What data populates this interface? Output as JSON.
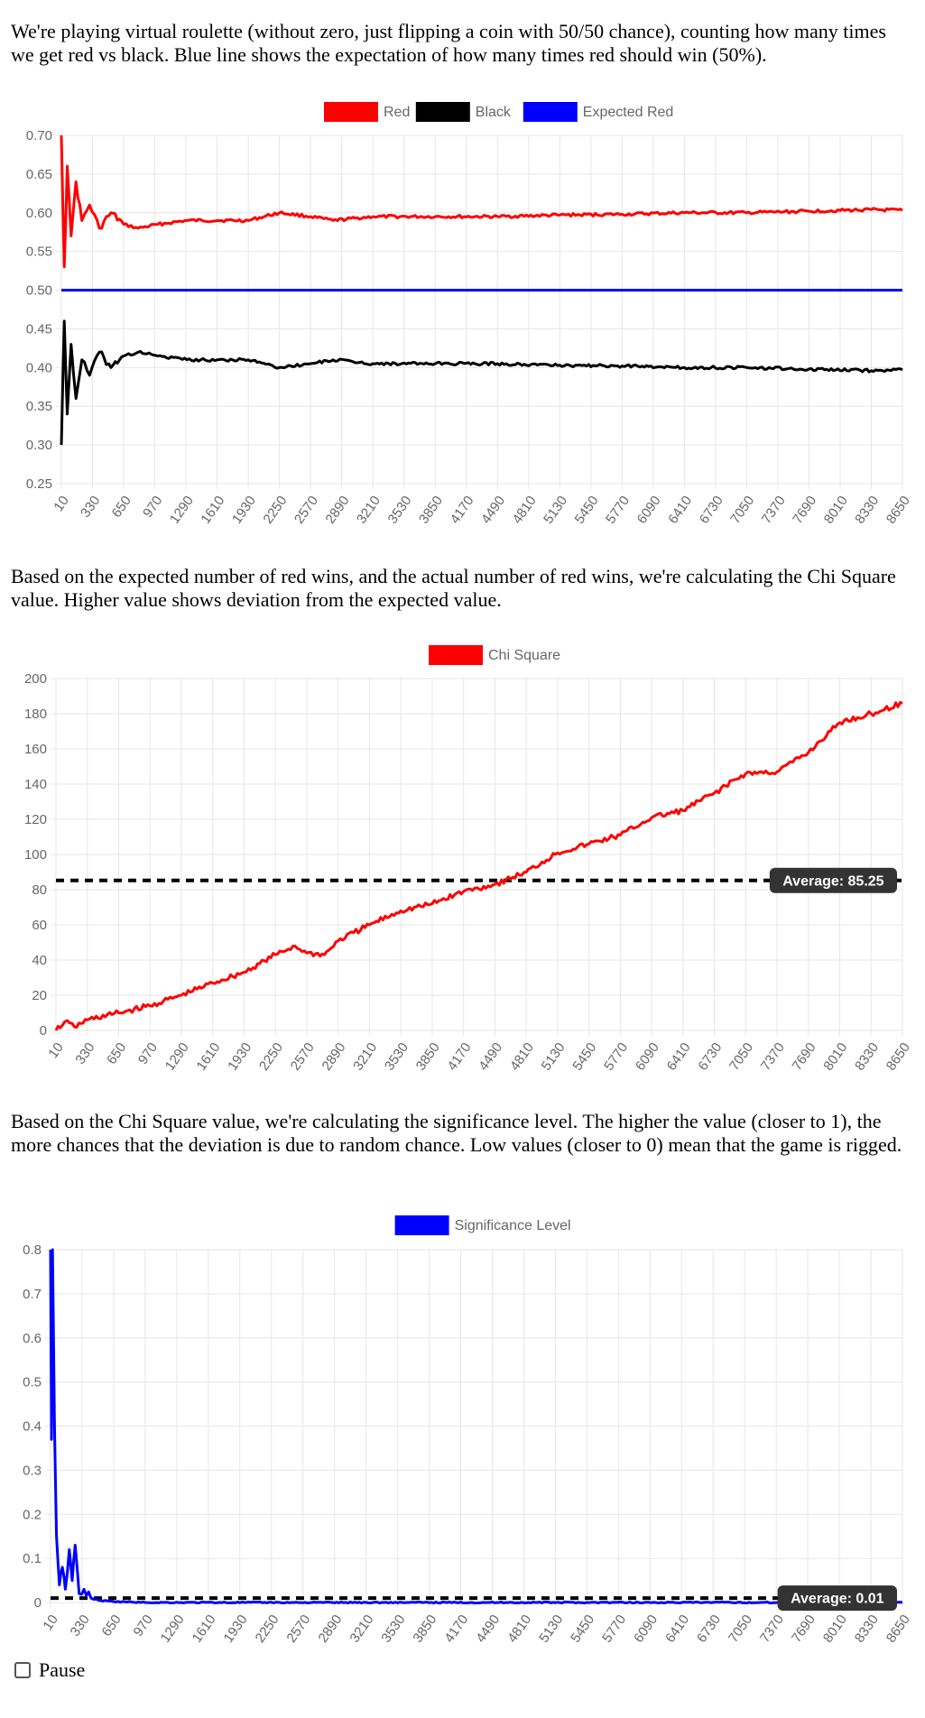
{
  "intro_text": "We're playing virtual roulette (without zero, just flipping a coin with 50/50 chance), counting how many times we get red vs black. Blue line shows the expectation of how many times red should win (50%).",
  "chi_text": "Based on the expected number of red wins, and the actual number of red wins, we're calculating the Chi Square value. Higher value shows deviation from the expected value.",
  "sig_text": "Based on the Chi Square value, we're calculating the significance level. The higher the value (closer to 1), the more chances that the deviation is due to random chance. Low values (closer to 0) mean that the game is rigged.",
  "pause_label": "Pause",
  "colors": {
    "red": "#ff0000",
    "black": "#000000",
    "blue": "#0000ff",
    "grid": "#e6e6e6",
    "tick": "#666666",
    "annotation_bg": "#333333"
  },
  "x_tick_labels": [
    "10",
    "330",
    "650",
    "970",
    "1290",
    "1610",
    "1930",
    "2250",
    "2570",
    "2890",
    "3210",
    "3530",
    "3850",
    "4170",
    "4490",
    "4810",
    "5130",
    "5450",
    "5770",
    "6090",
    "6410",
    "6730",
    "7050",
    "7370",
    "7690",
    "8010",
    "8330",
    "8650"
  ],
  "chart_data": [
    {
      "type": "line",
      "x_range": [
        10,
        8650
      ],
      "y_ticks": [
        "0.70",
        "0.65",
        "0.60",
        "0.55",
        "0.50",
        "0.45",
        "0.40",
        "0.35",
        "0.30",
        "0.25"
      ],
      "ylim": [
        0.25,
        0.7
      ],
      "legend_placement": "top-center",
      "series": [
        {
          "name": "Red",
          "color": "#ff0000",
          "points": [
            [
              10,
              0.7
            ],
            [
              40,
              0.53
            ],
            [
              70,
              0.66
            ],
            [
              110,
              0.57
            ],
            [
              160,
              0.64
            ],
            [
              220,
              0.59
            ],
            [
              300,
              0.61
            ],
            [
              400,
              0.58
            ],
            [
              520,
              0.6
            ],
            [
              650,
              0.585
            ],
            [
              800,
              0.58
            ],
            [
              1000,
              0.585
            ],
            [
              1300,
              0.59
            ],
            [
              1610,
              0.59
            ],
            [
              1930,
              0.59
            ],
            [
              2250,
              0.6
            ],
            [
              2570,
              0.595
            ],
            [
              2800,
              0.59
            ],
            [
              3210,
              0.595
            ],
            [
              3850,
              0.595
            ],
            [
              4490,
              0.595
            ],
            [
              5130,
              0.597
            ],
            [
              5770,
              0.598
            ],
            [
              6410,
              0.6
            ],
            [
              7050,
              0.6
            ],
            [
              7690,
              0.602
            ],
            [
              8330,
              0.604
            ],
            [
              8650,
              0.603
            ]
          ]
        },
        {
          "name": "Black",
          "color": "#000000",
          "points": [
            [
              10,
              0.3
            ],
            [
              40,
              0.46
            ],
            [
              70,
              0.34
            ],
            [
              110,
              0.43
            ],
            [
              160,
              0.36
            ],
            [
              220,
              0.41
            ],
            [
              300,
              0.39
            ],
            [
              400,
              0.42
            ],
            [
              520,
              0.4
            ],
            [
              650,
              0.415
            ],
            [
              800,
              0.42
            ],
            [
              1000,
              0.415
            ],
            [
              1300,
              0.41
            ],
            [
              1610,
              0.41
            ],
            [
              1930,
              0.41
            ],
            [
              2250,
              0.4
            ],
            [
              2570,
              0.405
            ],
            [
              2800,
              0.41
            ],
            [
              3210,
              0.405
            ],
            [
              3850,
              0.405
            ],
            [
              4490,
              0.405
            ],
            [
              5130,
              0.403
            ],
            [
              5770,
              0.402
            ],
            [
              6410,
              0.4
            ],
            [
              7050,
              0.4
            ],
            [
              7690,
              0.398
            ],
            [
              8330,
              0.396
            ],
            [
              8650,
              0.397
            ]
          ]
        },
        {
          "name": "Expected Red",
          "color": "#0000ff",
          "points": [
            [
              10,
              0.5
            ],
            [
              8650,
              0.5
            ]
          ]
        }
      ]
    },
    {
      "type": "line",
      "x_range": [
        10,
        8650
      ],
      "y_ticks": [
        "200",
        "180",
        "160",
        "140",
        "120",
        "100",
        "80",
        "60",
        "40",
        "20",
        "0"
      ],
      "ylim": [
        0,
        200
      ],
      "legend_placement": "top-center",
      "series": [
        {
          "name": "Chi Square",
          "color": "#ff0000",
          "points": [
            [
              10,
              0
            ],
            [
              100,
              5
            ],
            [
              200,
              2
            ],
            [
              330,
              6
            ],
            [
              650,
              10
            ],
            [
              970,
              14
            ],
            [
              1290,
              20
            ],
            [
              1610,
              27
            ],
            [
              1930,
              33
            ],
            [
              2250,
              43
            ],
            [
              2450,
              48
            ],
            [
              2570,
              44
            ],
            [
              2750,
              43
            ],
            [
              2890,
              51
            ],
            [
              3210,
              60
            ],
            [
              3530,
              68
            ],
            [
              3850,
              72
            ],
            [
              4170,
              79
            ],
            [
              4490,
              83
            ],
            [
              4810,
              90
            ],
            [
              5130,
              101
            ],
            [
              5450,
              106
            ],
            [
              5770,
              111
            ],
            [
              6090,
              121
            ],
            [
              6410,
              125
            ],
            [
              6730,
              135
            ],
            [
              7050,
              146
            ],
            [
              7370,
              147
            ],
            [
              7690,
              158
            ],
            [
              8010,
              175
            ],
            [
              8330,
              180
            ],
            [
              8650,
              186
            ]
          ]
        }
      ],
      "average_line": {
        "value": 85.25,
        "label": "Average: 85.25"
      }
    },
    {
      "type": "line",
      "x_range": [
        10,
        8650
      ],
      "y_ticks": [
        "0.8",
        "0.7",
        "0.6",
        "0.5",
        "0.4",
        "0.3",
        "0.2",
        "0.1",
        "0"
      ],
      "ylim": [
        0,
        0.8
      ],
      "legend_placement": "top-center",
      "series": [
        {
          "name": "Significance Level",
          "color": "#0000ff",
          "points": [
            [
              10,
              0.8
            ],
            [
              20,
              0.37
            ],
            [
              30,
              0.8
            ],
            [
              50,
              0.4
            ],
            [
              70,
              0.15
            ],
            [
              100,
              0.04
            ],
            [
              130,
              0.08
            ],
            [
              160,
              0.03
            ],
            [
              200,
              0.12
            ],
            [
              230,
              0.05
            ],
            [
              260,
              0.13
            ],
            [
              300,
              0.02
            ],
            [
              350,
              0.03
            ],
            [
              420,
              0.01
            ],
            [
              500,
              0.005
            ],
            [
              650,
              0.002
            ],
            [
              970,
              0.0
            ],
            [
              8650,
              0.0
            ]
          ]
        }
      ],
      "average_line": {
        "value": 0.01,
        "label": "Average: 0.01"
      }
    }
  ]
}
